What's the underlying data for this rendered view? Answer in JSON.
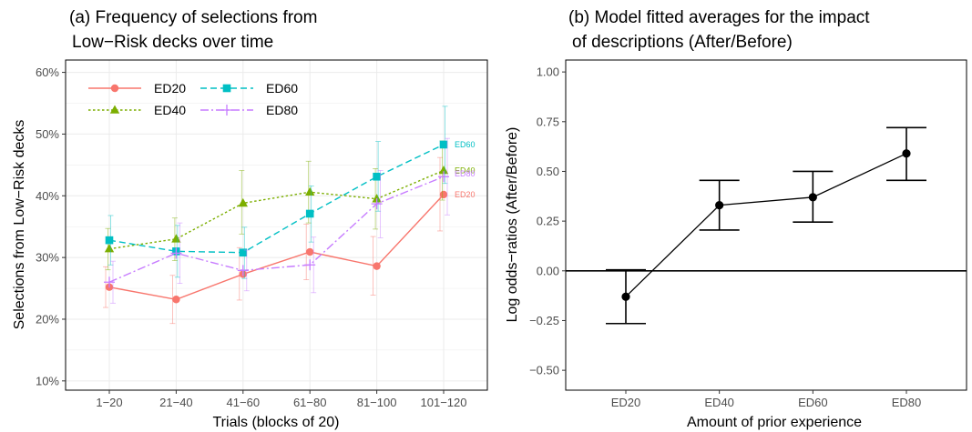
{
  "colors": {
    "ED20": "#F8766D",
    "ED40": "#7CAE00",
    "ED60": "#00BFC4",
    "ED80": "#C77CFF",
    "grid": "#ebebeb",
    "axis": "#000000"
  },
  "chart_data": [
    {
      "type": "line",
      "title_lines": [
        "(a) Frequency of selections from",
        "Low−Risk decks over time"
      ],
      "xlabel": "Trials (blocks of 20)",
      "ylabel": "Selections from Low−Risk decks",
      "categories": [
        "1−20",
        "21−40",
        "41−60",
        "61−80",
        "81−100",
        "101−120"
      ],
      "ylim": [
        8.5,
        62
      ],
      "yticks": [
        10,
        20,
        30,
        40,
        50,
        60
      ],
      "ytick_labels": [
        "10%",
        "20%",
        "30%",
        "40%",
        "50%",
        "60%"
      ],
      "grid": true,
      "legend_position": "top-left",
      "series": [
        {
          "name": "ED20",
          "marker": "circle",
          "dash": "",
          "values": [
            25.2,
            23.2,
            27.3,
            30.9,
            28.6,
            40.2
          ],
          "lower": [
            21.9,
            19.3,
            23.1,
            26.4,
            23.9,
            34.3
          ],
          "upper": [
            28.5,
            27.1,
            31.6,
            35.4,
            33.4,
            46.2
          ],
          "end_label": "ED20"
        },
        {
          "name": "ED40",
          "marker": "triangle",
          "dash": "2.5,2.5",
          "values": [
            31.4,
            33.0,
            38.8,
            40.6,
            39.5,
            44.1
          ],
          "lower": [
            28.0,
            29.5,
            33.8,
            35.6,
            34.6,
            39.3
          ],
          "upper": [
            34.7,
            36.4,
            44.1,
            45.6,
            44.4,
            48.9
          ],
          "end_label": "ED40"
        },
        {
          "name": "ED60",
          "marker": "square",
          "dash": "7,4",
          "values": [
            32.8,
            31.0,
            30.8,
            37.1,
            43.1,
            48.3
          ],
          "lower": [
            28.8,
            26.8,
            26.6,
            32.5,
            37.5,
            42.0
          ],
          "upper": [
            36.8,
            35.2,
            34.9,
            41.6,
            48.8,
            54.5
          ],
          "end_label": "ED60"
        },
        {
          "name": "ED80",
          "marker": "plus",
          "dash": "9,3,2,3",
          "values": [
            26.0,
            30.7,
            27.9,
            28.8,
            38.7,
            43.1
          ],
          "lower": [
            22.6,
            25.8,
            24.6,
            24.3,
            33.2,
            36.9
          ],
          "upper": [
            29.4,
            35.6,
            31.2,
            33.3,
            44.1,
            49.3
          ],
          "end_label": "ED80"
        }
      ]
    },
    {
      "type": "scatter",
      "title_lines": [
        "(b) Model fitted averages for the impact",
        "of descriptions (After/Before)"
      ],
      "xlabel": "Amount of prior experience",
      "ylabel": "Log odds−ratios (After/Before)",
      "categories": [
        "ED20",
        "ED40",
        "ED60",
        "ED80"
      ],
      "ylim": [
        -0.6,
        1.06
      ],
      "yticks": [
        -0.5,
        -0.25,
        0,
        0.25,
        0.5,
        0.75,
        1.0
      ],
      "ytick_labels": [
        "−0.50",
        "−0.25",
        "0.00",
        "0.25",
        "0.50",
        "0.75",
        "1.00"
      ],
      "grid": false,
      "reference_line": 0,
      "connected": true,
      "values": [
        -0.13,
        0.33,
        0.37,
        0.59
      ],
      "lower": [
        -0.265,
        0.205,
        0.245,
        0.455
      ],
      "upper": [
        0.005,
        0.455,
        0.5,
        0.72
      ]
    }
  ]
}
